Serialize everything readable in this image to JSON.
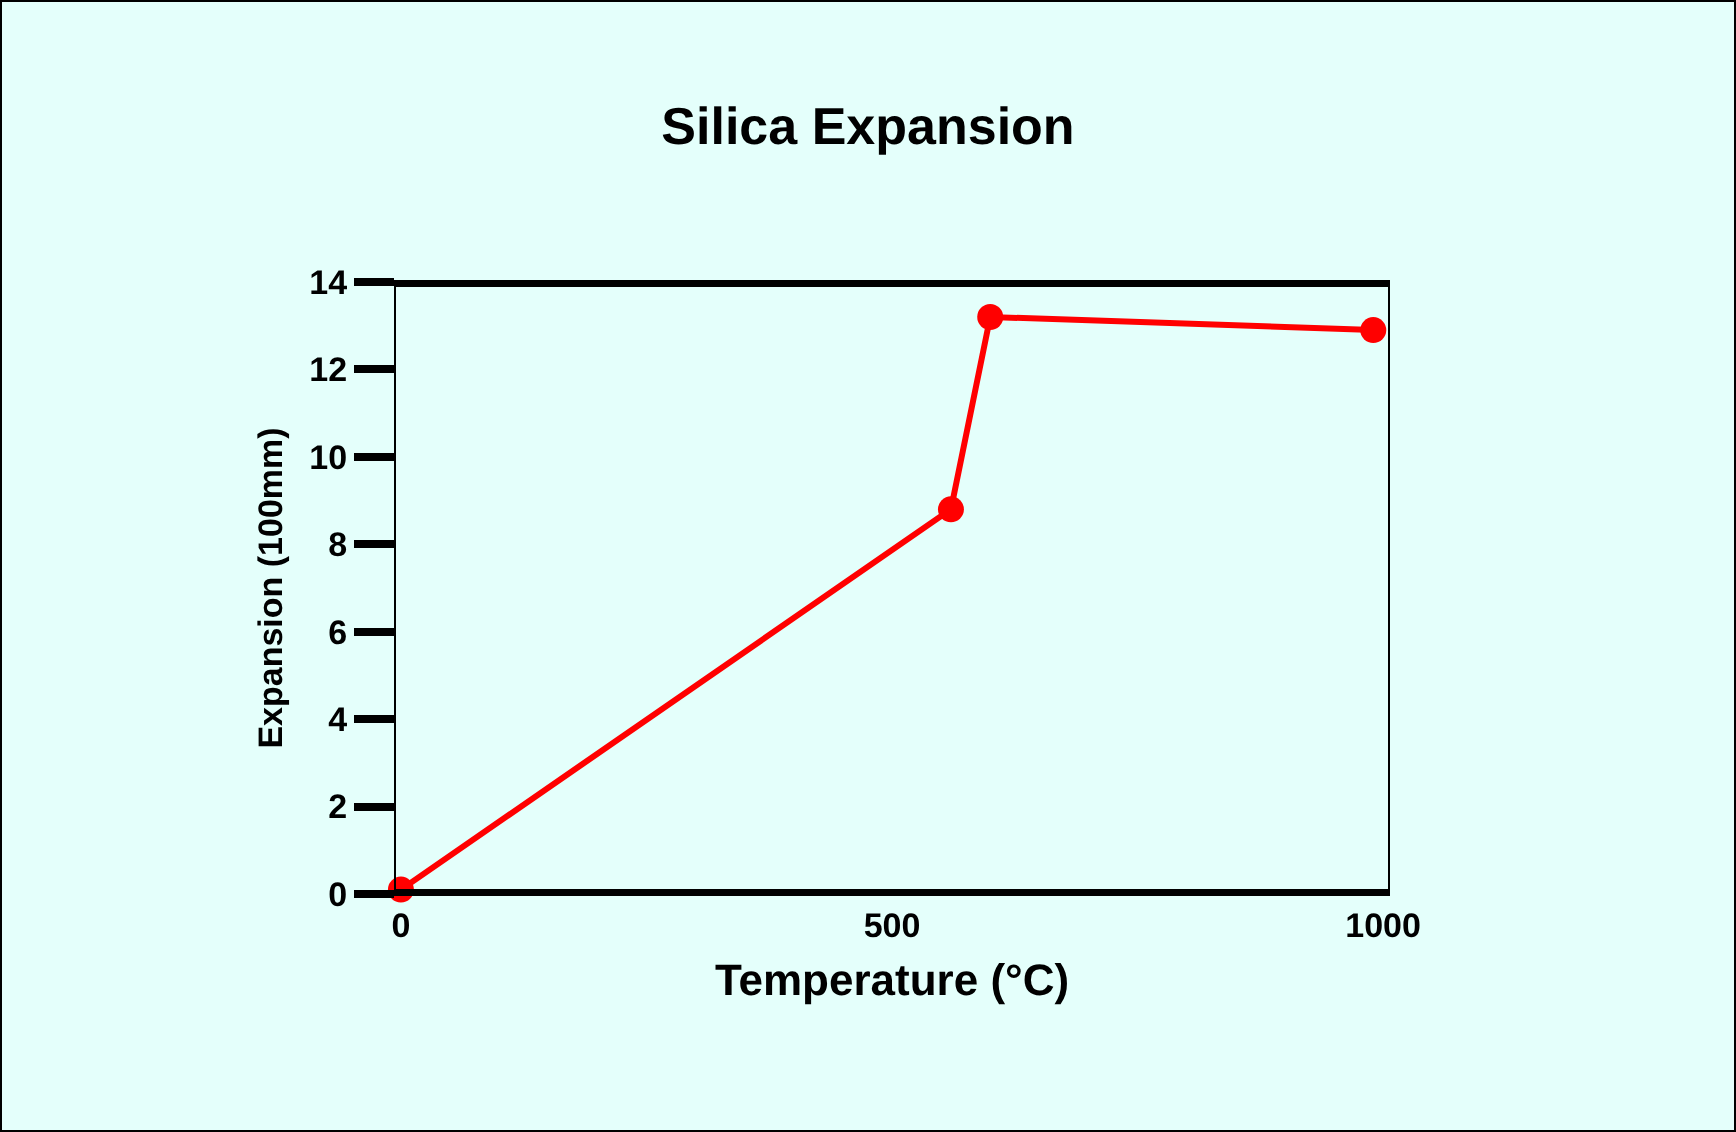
{
  "chart_data": {
    "type": "line",
    "title": "Silica Expansion",
    "xlabel": "Temperature (°C)",
    "ylabel": "Expansion (100mm)",
    "x": [
      0,
      560,
      600,
      990
    ],
    "series": [
      {
        "color": "#ff0000",
        "values": [
          0.1,
          8.8,
          13.2,
          12.9
        ]
      }
    ],
    "xlim": [
      -5,
      1005
    ],
    "xticks": [
      0,
      500,
      1000
    ],
    "ylim": [
      0,
      14
    ],
    "yticks": [
      0,
      2,
      4,
      6,
      8,
      10,
      12,
      14
    ],
    "grid": false,
    "legend": false,
    "marker": "circle",
    "line_style": "solid"
  }
}
